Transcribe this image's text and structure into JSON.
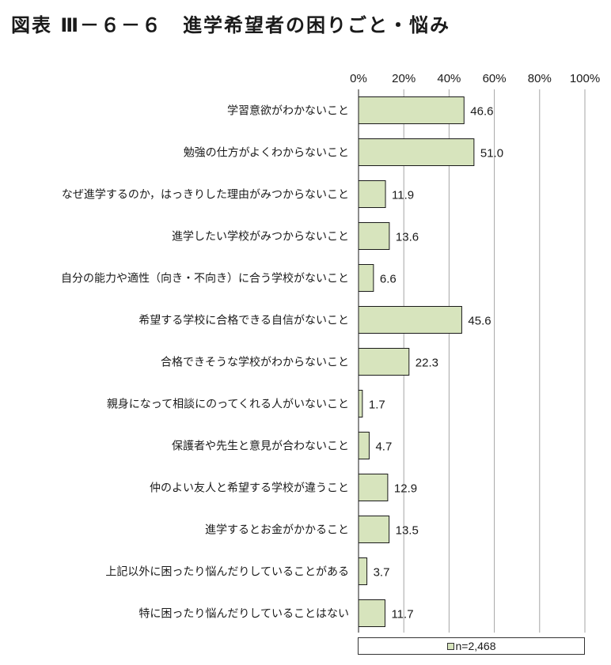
{
  "title": "図表 Ⅲ－６－６　進学希望者の困りごと・悩み",
  "chart_data": {
    "type": "bar",
    "orientation": "horizontal",
    "categories": [
      "学習意欲がわかないこと",
      "勉強の仕方がよくわからないこと",
      "なぜ進学するのか，はっきりした理由がみつからないこと",
      "進学したい学校がみつからないこと",
      "自分の能力や適性（向き・不向き）に合う学校がないこと",
      "希望する学校に合格できる自信がないこと",
      "合格できそうな学校がわからないこと",
      "親身になって相談にのってくれる人がいないこと",
      "保護者や先生と意見が合わないこと",
      "仲のよい友人と希望する学校が違うこと",
      "進学するとお金がかかること",
      "上記以外に困ったり悩んだりしていることがある",
      "特に困ったり悩んだりしていることはない"
    ],
    "values": [
      46.6,
      51.0,
      11.9,
      13.6,
      6.6,
      45.6,
      22.3,
      1.7,
      4.7,
      12.9,
      13.5,
      3.7,
      11.7
    ],
    "value_labels": [
      "46.6",
      "51.0",
      "11.9",
      "13.6",
      "6.6",
      "45.6",
      "22.3",
      "1.7",
      "4.7",
      "12.9",
      "13.5",
      "3.7",
      "11.7"
    ],
    "xlim": [
      0,
      100
    ],
    "ticks": [
      "0%",
      "20%",
      "40%",
      "60%",
      "80%",
      "100%"
    ],
    "tick_values": [
      0,
      20,
      40,
      60,
      80,
      100
    ],
    "legend": "n=2,468",
    "legend_position": "bottom",
    "grid": true,
    "bar_color": "#d7e4bd",
    "bar_stroke": "#1a1a1a",
    "grid_color": "#a6a6a6"
  }
}
